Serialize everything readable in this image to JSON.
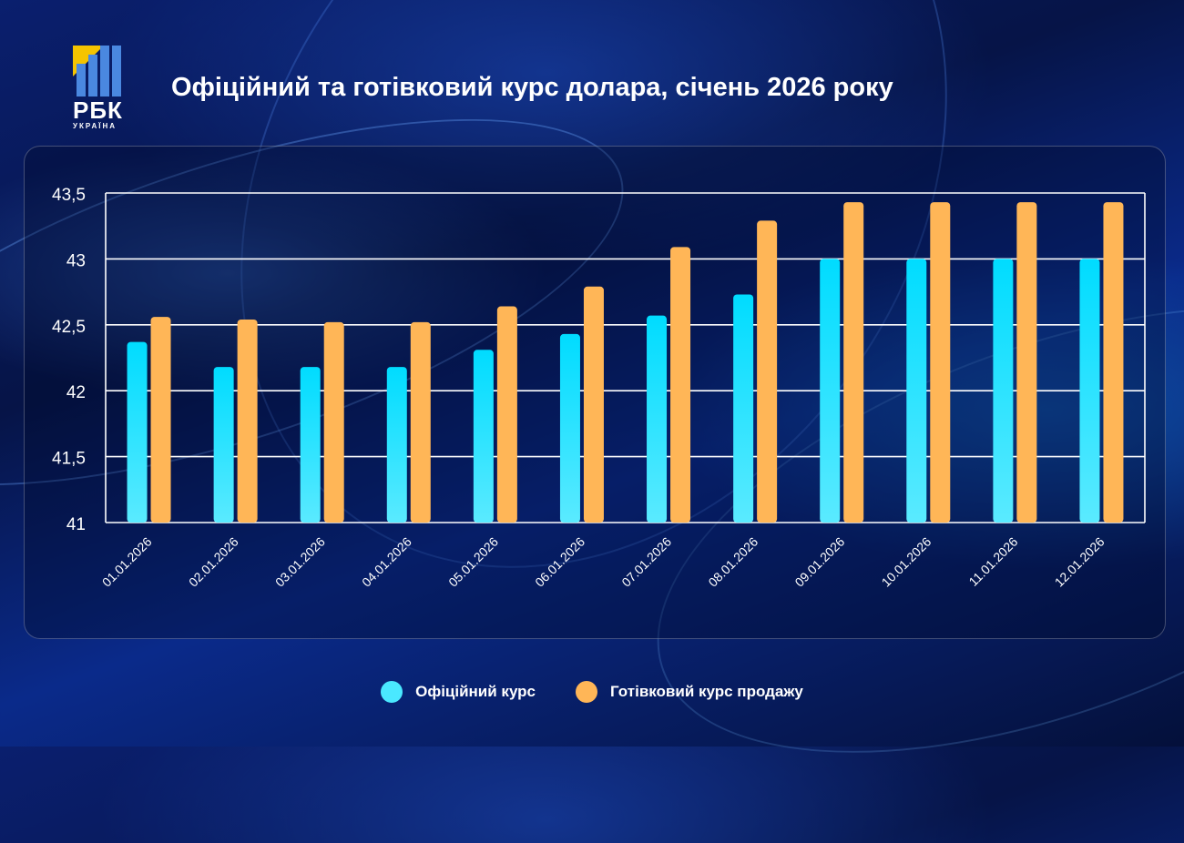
{
  "logo": {
    "text": "РБК",
    "subtext": "УКРАЇНА"
  },
  "title": "Офіційний та готівковий курс долара, січень 2026 року",
  "chart_data": {
    "type": "bar",
    "title": "Офіційний та готівковий курс долара, січень 2026 року",
    "categories": [
      "01.01.2026",
      "02.01.2026",
      "03.01.2026",
      "04.01.2026",
      "05.01.2026",
      "06.01.2026",
      "07.01.2026",
      "08.01.2026",
      "09.01.2026",
      "10.01.2026",
      "11.01.2026",
      "12.01.2026"
    ],
    "series": [
      {
        "name": "Офіційний курс",
        "color": "#1fe0ff",
        "values": [
          42.37,
          42.18,
          42.18,
          42.18,
          42.31,
          42.43,
          42.57,
          42.73,
          43.0,
          43.0,
          43.0,
          43.0
        ]
      },
      {
        "name": "Готівковий курс продажу",
        "color": "#ffb657",
        "values": [
          42.56,
          42.54,
          42.52,
          42.52,
          42.64,
          42.79,
          43.09,
          43.29,
          43.43,
          43.43,
          43.43,
          43.43
        ]
      }
    ],
    "ylim": [
      41,
      43.5
    ],
    "yticks": [
      41,
      41.5,
      42,
      42.5,
      43,
      43.5
    ],
    "ytick_labels": [
      "41",
      "41,5",
      "42",
      "42,5",
      "43",
      "43,5"
    ],
    "grid": true,
    "legend": "bottom"
  }
}
